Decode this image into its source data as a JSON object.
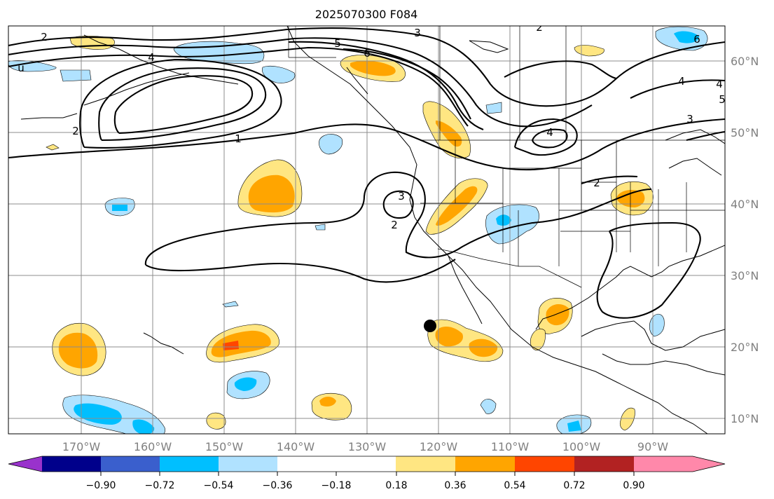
{
  "title": "2025070300 F084",
  "map": {
    "lon_labels": [
      "170°W",
      "160°W",
      "150°W",
      "140°W",
      "130°W",
      "120°W",
      "110°W",
      "100°W",
      "90°W"
    ],
    "lat_labels": [
      "60°N",
      "50°N",
      "40°N",
      "30°N",
      "20°N",
      "10°N"
    ],
    "contour_labels": [
      "2",
      "3",
      "5",
      "6",
      "2",
      "4",
      "4",
      "3",
      "1",
      "4",
      "2",
      "3",
      "2",
      "4",
      "2",
      "6",
      "5",
      "u"
    ]
  },
  "colorbar": {
    "tick_labels": [
      "−0.90",
      "−0.72",
      "−0.54",
      "−0.36",
      "−0.18",
      "0.18",
      "0.36",
      "0.54",
      "0.72",
      "0.90"
    ],
    "colors": [
      "#9932cc",
      "#00008b",
      "#3a5fcd",
      "#00bfff",
      "#b0e2ff",
      "#ffffff",
      "#ffe682",
      "#ffa500",
      "#ff4500",
      "#b22222",
      "#ff88aa"
    ]
  },
  "palette": {
    "pos_light": "#ffe682",
    "pos_mid": "#ffa500",
    "pos_high": "#ff4500",
    "neg_light": "#b0e2ff",
    "neg_mid": "#00bfff"
  },
  "marker": {
    "lon": "121°W",
    "lat": "23°N"
  }
}
